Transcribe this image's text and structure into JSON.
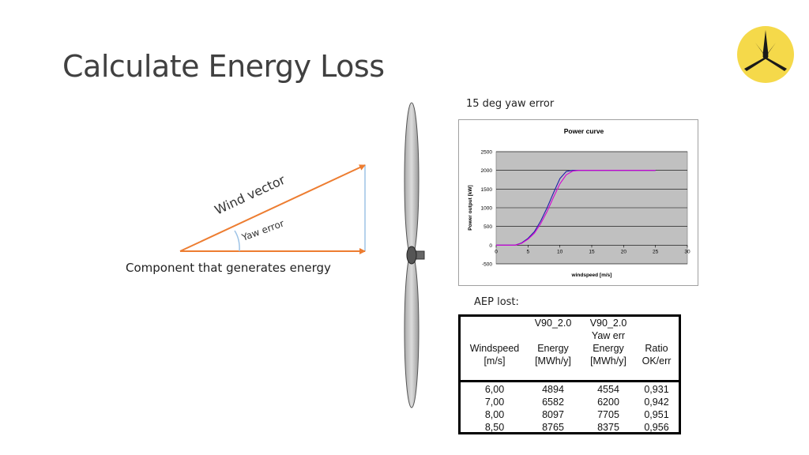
{
  "slide": {
    "title": "Calculate Energy Loss",
    "logo": {
      "icon": "three-blade-star-logo-icon",
      "background": "#f5d94a"
    }
  },
  "diagram": {
    "wind_vector_label": "Wind vector",
    "yaw_error_label": "Yaw error",
    "component_label": "Component that generates energy",
    "arrow_color": "#ed7d31",
    "projection_color": "#9dc3e6"
  },
  "chart_caption": "15 deg yaw error",
  "chart_data": {
    "type": "line",
    "title": "Power curve",
    "xlabel": "windspeed [m/s]",
    "ylabel": "Power output [kW]",
    "xlim": [
      0,
      30
    ],
    "ylim": [
      -500,
      2500
    ],
    "xticks": [
      0,
      5,
      10,
      15,
      20,
      25,
      30
    ],
    "yticks": [
      -500,
      0,
      500,
      1000,
      1500,
      2000,
      2500
    ],
    "grid": true,
    "plot_background": "#c0c0c0",
    "series": [
      {
        "name": "V90_2.0",
        "color": "#1f1fa8",
        "x": [
          0,
          3,
          4,
          5,
          6,
          7,
          8,
          9,
          10,
          11,
          12,
          13,
          25
        ],
        "y": [
          0,
          0,
          60,
          180,
          360,
          650,
          1000,
          1400,
          1780,
          1970,
          2000,
          2000,
          2000
        ]
      },
      {
        "name": "V90_2.0 Yaw err",
        "color": "#d400d4",
        "x": [
          0,
          3,
          4,
          5,
          6,
          7,
          8,
          9,
          10,
          11,
          12,
          13,
          14,
          25
        ],
        "y": [
          0,
          0,
          50,
          160,
          320,
          580,
          900,
          1280,
          1640,
          1880,
          1980,
          2000,
          2000,
          2000
        ]
      }
    ]
  },
  "aep": {
    "caption": "AEP lost:",
    "columns": [
      {
        "header": [
          "",
          "",
          "Windspeed",
          "[m/s]"
        ],
        "values": [
          "6,00",
          "7,00",
          "8,00",
          "8,50"
        ]
      },
      {
        "header": [
          "V90_2.0",
          "",
          "Energy",
          "[MWh/y]"
        ],
        "values": [
          "4894",
          "6582",
          "8097",
          "8765"
        ]
      },
      {
        "header": [
          "V90_2.0",
          "Yaw err",
          "Energy",
          "[MWh/y]"
        ],
        "values": [
          "4554",
          "6200",
          "7705",
          "8375"
        ]
      },
      {
        "header": [
          "",
          "",
          "Ratio",
          "OK/err"
        ],
        "values": [
          "0,931",
          "0,942",
          "0,951",
          "0,956"
        ]
      }
    ]
  }
}
